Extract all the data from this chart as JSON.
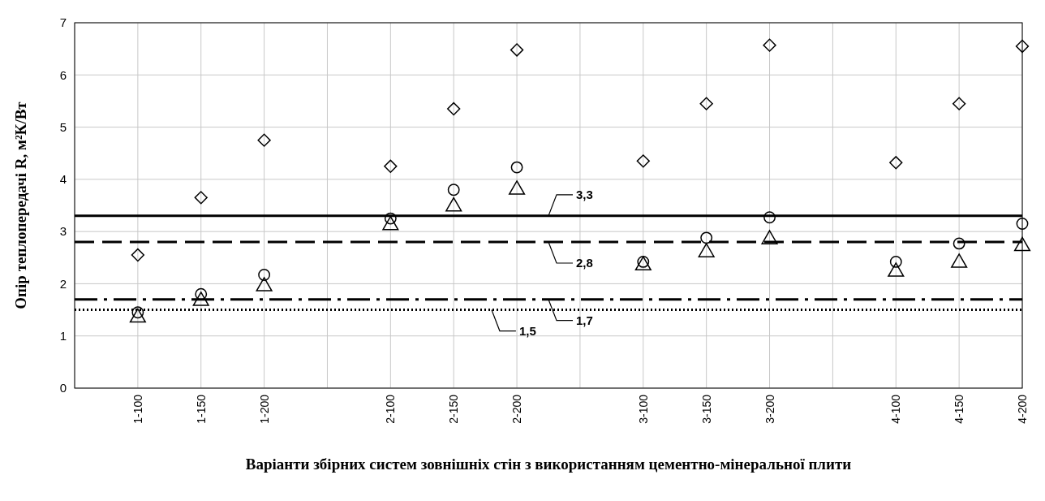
{
  "chart_data": {
    "type": "scatter",
    "xlabel": "Варіанти збірних систем зовнішніх стін з використанням цементно-мінеральної плити",
    "ylabel": "Опір теплопередачі R, м²К/Вт",
    "categories": [
      null,
      "1-100",
      "1-150",
      "1-200",
      null,
      "2-100",
      "2-150",
      "2-200",
      null,
      "3-100",
      "3-150",
      "3-200",
      null,
      "4-100",
      "4-150",
      "4-200"
    ],
    "series": [
      {
        "color": "#000000",
        "marker": "diamond",
        "values": [
          null,
          2.55,
          3.65,
          4.75,
          null,
          4.25,
          5.35,
          6.48,
          null,
          4.35,
          5.45,
          6.57,
          null,
          4.32,
          5.45,
          6.55
        ]
      },
      {
        "color": "#000000",
        "marker": "circle",
        "values": [
          null,
          1.45,
          1.8,
          2.17,
          null,
          3.25,
          3.8,
          4.23,
          null,
          2.42,
          2.88,
          3.27,
          null,
          2.42,
          2.77,
          3.15
        ]
      },
      {
        "color": "#000000",
        "marker": "triangle",
        "values": [
          null,
          1.35,
          1.67,
          1.95,
          null,
          3.12,
          3.48,
          3.8,
          null,
          2.35,
          2.6,
          2.85,
          null,
          2.23,
          2.4,
          2.72
        ]
      }
    ],
    "ylim": [
      0,
      7
    ],
    "yticks": [
      0,
      1,
      2,
      3,
      4,
      5,
      6,
      7
    ],
    "grid": true,
    "ref_lines": [
      {
        "axis": "y",
        "value": 3.3,
        "label": "3,3",
        "line_style": "solid",
        "color": "#000000"
      },
      {
        "axis": "y",
        "value": 2.8,
        "label": "2,8",
        "line_style": "dashed",
        "color": "#000000"
      },
      {
        "axis": "y",
        "value": 1.7,
        "label": "1,7",
        "line_style": "dashdot",
        "color": "#000000"
      },
      {
        "axis": "y",
        "value": 1.5,
        "label": "1,5",
        "line_style": "dotted",
        "color": "#000000"
      }
    ]
  }
}
